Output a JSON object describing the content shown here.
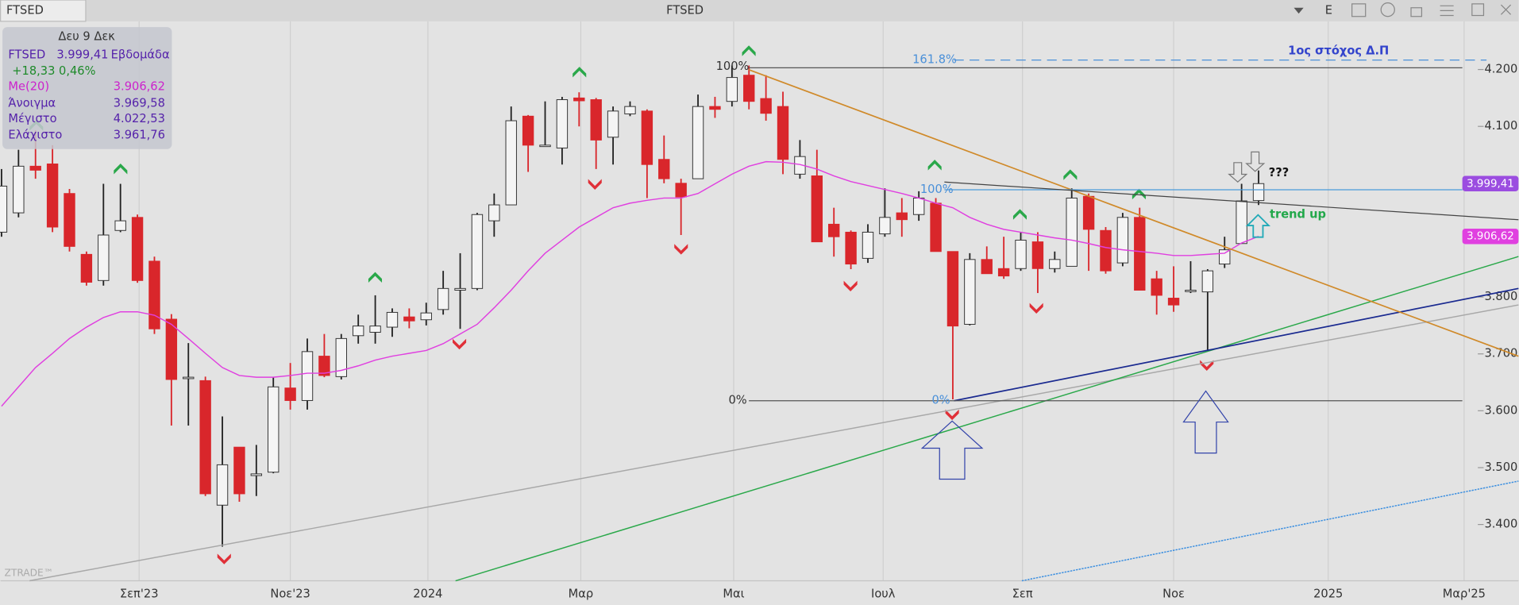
{
  "header": {
    "tab": "FTSED",
    "title": "FTSED",
    "button": "E"
  },
  "info_panel": {
    "date": "Δευ 9 Δεκ",
    "symbol": "FTSED",
    "last": "3.999,41",
    "period": "Εβδομάδα",
    "change": "+18,33 0,46%",
    "rows": [
      [
        "Me(20)",
        "3.906,62"
      ],
      [
        "Άνοιγμα",
        "3.969,58"
      ],
      [
        "Μέγιστο",
        "4.022,53"
      ],
      [
        "Ελάχιστο",
        "3.961,76"
      ]
    ]
  },
  "chart_data": {
    "type": "candlestick",
    "open": [
      3914,
      3948,
      4030,
      4034,
      3982,
      3875,
      3829,
      3917,
      3940,
      3863,
      3761,
      3657,
      3653,
      3434,
      3536,
      3486,
      3492,
      3640,
      3618,
      3696,
      3660,
      3732,
      3738,
      3747,
      3765,
      3760,
      3778,
      3812,
      3815,
      3934,
      3962,
      4118,
      4067,
      4062,
      4150,
      4147,
      4081,
      4122,
      4127,
      4042,
      4000,
      4008,
      4135,
      4144,
      4190,
      4149,
      4135,
      4016,
      4013,
      3928,
      3914,
      3868,
      3911,
      3948,
      3945,
      3965,
      3880,
      3752,
      3866,
      3850,
      3850,
      3897,
      3850,
      3854,
      3977,
      3917,
      3860,
      3940,
      3832,
      3798,
      3812,
      3809,
      3858,
      3894,
      3969.58
    ],
    "high": [
      4025,
      4059,
      4093,
      4067,
      3990,
      3880,
      3999,
      3999,
      3945,
      3871,
      3770,
      3719,
      3660,
      3590,
      3536,
      3540,
      3659,
      3684,
      3727,
      3735,
      3735,
      3769,
      3803,
      3780,
      3780,
      3790,
      3846,
      3877,
      3948,
      3982,
      4135,
      4120,
      4144,
      4152,
      4160,
      4150,
      4135,
      4144,
      4130,
      4084,
      4008,
      4156,
      4152,
      4207,
      4207,
      4190,
      4161,
      4076,
      4059,
      3957,
      3917,
      3928,
      3991,
      3974,
      3986,
      3974,
      3880,
      3877,
      3889,
      3906,
      3914,
      3914,
      3880,
      3991,
      3982,
      3923,
      3948,
      3957,
      3846,
      3854,
      3863,
      3849,
      3906,
      3999,
      4022.53
    ],
    "low": [
      3906,
      3940,
      4008,
      3914,
      3880,
      3820,
      3820,
      3914,
      3825,
      3735,
      3574,
      3574,
      3450,
      3361,
      3440,
      3450,
      3490,
      3602,
      3602,
      3659,
      3655,
      3718,
      3718,
      3730,
      3745,
      3750,
      3769,
      3744,
      3812,
      3906,
      3962,
      4020,
      4065,
      4033,
      4100,
      4025,
      4033,
      4118,
      3974,
      4000,
      3909,
      4008,
      4115,
      4135,
      4130,
      4110,
      4016,
      4008,
      3897,
      3871,
      3849,
      3860,
      3906,
      3906,
      3934,
      3880,
      3620,
      3750,
      3841,
      3832,
      3846,
      3807,
      3843,
      3854,
      3846,
      3841,
      3854,
      3812,
      3769,
      3774,
      3807,
      3706,
      3851,
      3894,
      3961.76
    ],
    "close": [
      3995,
      4030,
      4023,
      3923,
      3889,
      3826,
      3909,
      3934,
      3829,
      3744,
      3655,
      3659,
      3454,
      3505,
      3454,
      3489,
      3642,
      3618,
      3704,
      3662,
      3727,
      3749,
      3749,
      3773,
      3758,
      3772,
      3815,
      3815,
      3945,
      3962,
      4110,
      4067,
      4067,
      4147,
      4145,
      4076,
      4127,
      4135,
      4033,
      4008,
      3976,
      4135,
      4130,
      4186,
      4144,
      4123,
      4042,
      4047,
      3897,
      3906,
      3858,
      3914,
      3940,
      3936,
      3974,
      3880,
      3749,
      3866,
      3841,
      3837,
      3900,
      3850,
      3866,
      3974,
      3919,
      3846,
      3940,
      3812,
      3803,
      3786,
      3812,
      3846,
      3883,
      3969,
      3999.41
    ],
    "series": [
      {
        "name": "Me(20)",
        "color": "#e040e0",
        "values": [
          3608,
          3642,
          3676,
          3701,
          3727,
          3747,
          3764,
          3774,
          3774,
          3768,
          3752,
          3727,
          3701,
          3676,
          3662,
          3659,
          3659,
          3662,
          3666,
          3666,
          3671,
          3679,
          3689,
          3696,
          3701,
          3706,
          3718,
          3735,
          3752,
          3781,
          3812,
          3846,
          3877,
          3900,
          3923,
          3940,
          3957,
          3965,
          3970,
          3974,
          3974,
          3982,
          3999,
          4016,
          4030,
          4038,
          4037,
          4033,
          4025,
          4013,
          4003,
          3996,
          3989,
          3982,
          3974,
          3965,
          3957,
          3940,
          3928,
          3919,
          3914,
          3909,
          3904,
          3900,
          3894,
          3887,
          3883,
          3880,
          3877,
          3873,
          3873,
          3875,
          3877,
          3895,
          3906.62
        ]
      }
    ],
    "up_color": "#f4f4f4",
    "down_color": "#d9262b",
    "ylim": [
      3301,
      4278
    ],
    "yticks": [
      {
        "value": 4200,
        "label": "4.200"
      },
      {
        "value": 4100,
        "label": "4.100"
      },
      {
        "value": 4000,
        "label": "4.000"
      },
      {
        "value": 3900,
        "label": "3.900"
      },
      {
        "value": 3800,
        "label": "3.800"
      },
      {
        "value": 3700,
        "label": "3.700"
      },
      {
        "value": 3600,
        "label": "3.600"
      },
      {
        "value": 3500,
        "label": "3.500"
      },
      {
        "value": 3400,
        "label": "3.400"
      }
    ],
    "xlim": [
      -0.06,
      89.3
    ],
    "xticks": [
      {
        "value": 8.1,
        "label": "Σεπ'23"
      },
      {
        "value": 17.0,
        "label": "Νοε'23"
      },
      {
        "value": 25.1,
        "label": "2024"
      },
      {
        "value": 34.1,
        "label": "Μαρ"
      },
      {
        "value": 43.1,
        "label": "Μαι"
      },
      {
        "value": 51.9,
        "label": "Ιουλ"
      },
      {
        "value": 60.1,
        "label": "Σεπ"
      },
      {
        "value": 69.0,
        "label": "Νοε"
      },
      {
        "value": 78.1,
        "label": "2025"
      },
      {
        "value": 86.1,
        "label": "Μαρ'25"
      }
    ],
    "grid": "x",
    "price_tags": [
      "3.999,41",
      "3.906,62"
    ],
    "annotations": {
      "fib_1618": "161.8%",
      "target": "1ος στόχος Δ.Π",
      "fib_100_a": "100%",
      "fib_100_b": "100%",
      "fib_0_a": "0%",
      "fib_0_b": "0%",
      "question": "???",
      "trend": "trend up",
      "brand": "ZTRADE™"
    }
  }
}
